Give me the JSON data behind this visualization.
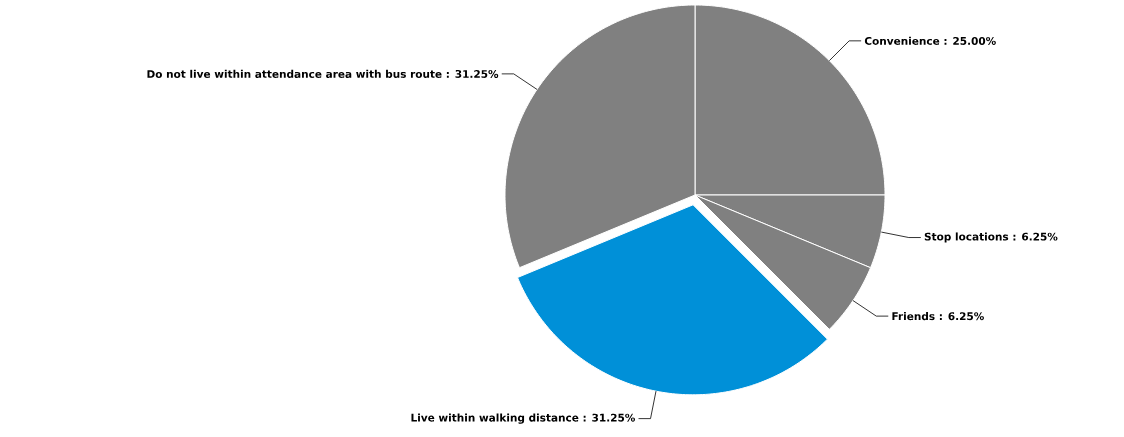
{
  "chart_data": {
    "type": "pie",
    "categories": [
      "Convenience",
      "Stop locations",
      "Friends",
      "Live within walking distance",
      "Do not live within attendance area with bus route"
    ],
    "values": [
      25,
      6.25,
      6.25,
      31.25,
      31.25
    ],
    "value_labels": [
      ": 25.00%",
      ": 6.25%",
      ": 6.25%",
      ": 31.25%",
      ": 31.25%"
    ],
    "colors": [
      "#808080",
      "#808080",
      "#808080",
      "#0090d8",
      "#808080"
    ]
  }
}
